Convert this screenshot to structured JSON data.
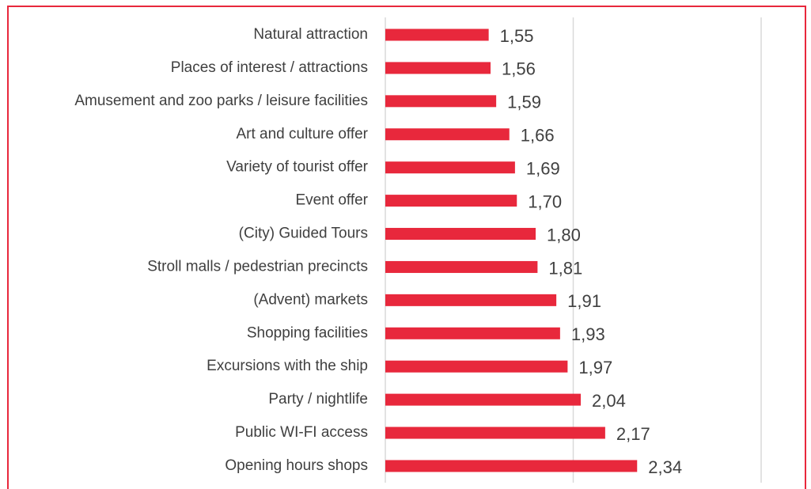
{
  "chart_data": {
    "type": "bar",
    "orientation": "horizontal",
    "categories": [
      "Natural attraction",
      "Places of interest / attractions",
      "Amusement and zoo parks / leisure facilities",
      "Art and culture offer",
      "Variety of tourist offer",
      "Event offer",
      "(City) Guided Tours",
      "Stroll malls / pedestrian precincts",
      "(Advent) markets",
      "Shopping facilities",
      "Excursions with the ship",
      "Party / nightlife",
      "Public WI-FI access",
      "Opening hours shops"
    ],
    "values": [
      1.55,
      1.56,
      1.59,
      1.66,
      1.69,
      1.7,
      1.8,
      1.81,
      1.91,
      1.93,
      1.97,
      2.04,
      2.17,
      2.34
    ],
    "value_labels": [
      "1,55",
      "1,56",
      "1,59",
      "1,66",
      "1,69",
      "1,70",
      "1,80",
      "1,81",
      "1,91",
      "1,93",
      "1,97",
      "2,04",
      "2,17",
      "2,34"
    ],
    "color": "#e8283c",
    "xlim": [
      1,
      3
    ],
    "xticks": [
      1,
      2,
      3
    ],
    "grid": true
  }
}
